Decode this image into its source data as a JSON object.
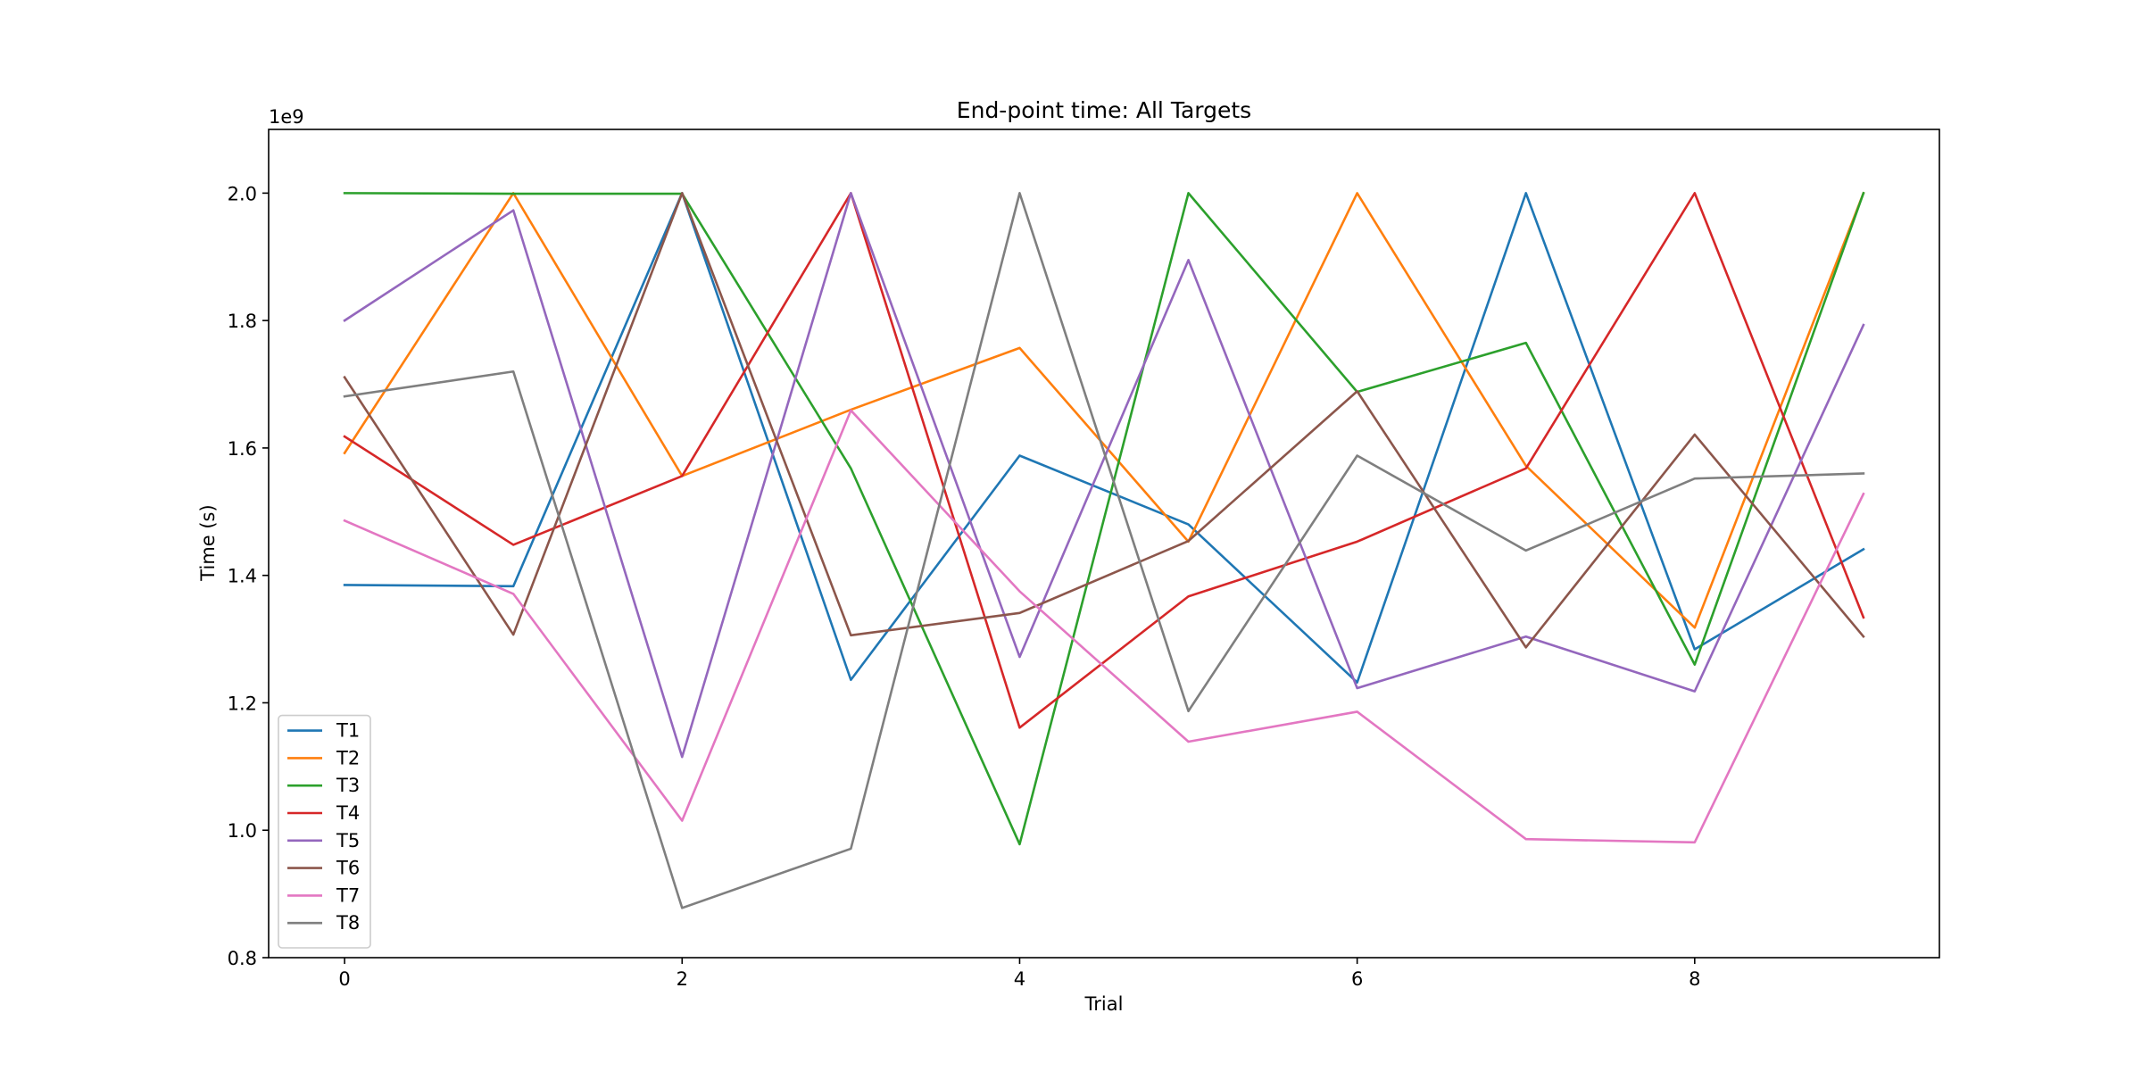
{
  "chart_data": {
    "type": "line",
    "title": "End-point time: All Targets",
    "xlabel": "Trial",
    "ylabel": "Time (s)",
    "y_scale_label": "1e9",
    "xlim": [
      -0.45,
      9.45
    ],
    "ylim": [
      0.8,
      2.1
    ],
    "x_ticks": [
      0,
      2,
      4,
      6,
      8
    ],
    "y_ticks": [
      0.8,
      1.0,
      1.2,
      1.4,
      1.6,
      1.8,
      2.0
    ],
    "x_tick_labels": [
      "0",
      "2",
      "4",
      "6",
      "8"
    ],
    "y_tick_labels": [
      "0.8",
      "1.0",
      "1.2",
      "1.4",
      "1.6",
      "1.8",
      "2.0"
    ],
    "grid": false,
    "legend_position": "lower-left",
    "x": [
      0,
      1,
      2,
      3,
      4,
      5,
      6,
      7,
      8,
      9
    ],
    "series": [
      {
        "name": "T1",
        "color": "#1f77b4",
        "values": [
          1.385,
          1.383,
          2.0,
          1.236,
          1.588,
          1.48,
          1.232,
          2.0,
          1.284,
          1.441
        ]
      },
      {
        "name": "T2",
        "color": "#ff7f0e",
        "values": [
          1.592,
          2.0,
          1.556,
          1.66,
          1.757,
          1.453,
          2.0,
          1.572,
          1.318,
          2.0
        ]
      },
      {
        "name": "T3",
        "color": "#2ca02c",
        "values": [
          2.0,
          1.999,
          1.999,
          1.568,
          0.978,
          2.0,
          1.688,
          1.765,
          1.26,
          2.0
        ]
      },
      {
        "name": "T4",
        "color": "#d62728",
        "values": [
          1.618,
          1.448,
          1.556,
          2.0,
          1.161,
          1.367,
          1.453,
          1.568,
          2.0,
          1.334
        ]
      },
      {
        "name": "T5",
        "color": "#9467bd",
        "values": [
          1.8,
          1.973,
          1.115,
          2.0,
          1.272,
          1.895,
          1.223,
          1.304,
          1.218,
          1.793
        ]
      },
      {
        "name": "T6",
        "color": "#8c564b",
        "values": [
          1.711,
          1.307,
          2.0,
          1.306,
          1.341,
          1.454,
          1.689,
          1.287,
          1.621,
          1.304
        ]
      },
      {
        "name": "T7",
        "color": "#e377c2",
        "values": [
          1.486,
          1.371,
          1.015,
          1.659,
          1.375,
          1.139,
          1.186,
          0.986,
          0.981,
          1.528
        ]
      },
      {
        "name": "T8",
        "color": "#7f7f7f",
        "values": [
          1.681,
          1.72,
          0.878,
          0.971,
          2.0,
          1.187,
          1.588,
          1.439,
          1.552,
          1.56
        ]
      }
    ]
  }
}
